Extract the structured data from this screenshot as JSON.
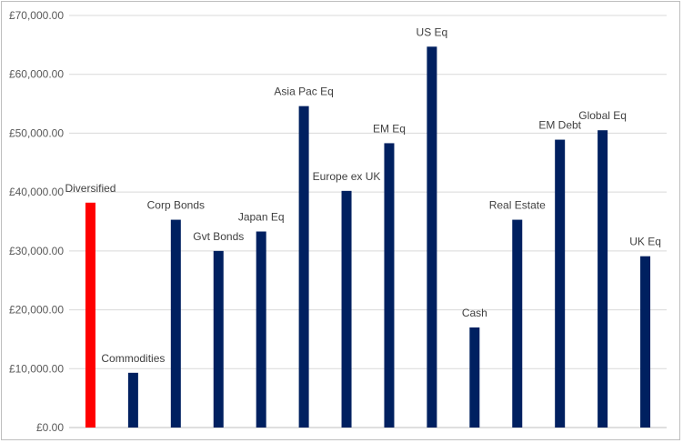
{
  "chart_data": {
    "type": "bar",
    "title": "",
    "xlabel": "",
    "ylabel": "",
    "ylim": [
      0,
      70000
    ],
    "y_ticks": [
      "£0.00",
      "£10,000.00",
      "£20,000.00",
      "£30,000.00",
      "£40,000.00",
      "£50,000.00",
      "£60,000.00",
      "£70,000.00"
    ],
    "grid": true,
    "legend": "none",
    "categories": [
      "Diversified",
      "Commodities",
      "Corp Bonds",
      "Gvt Bonds",
      "Japan Eq",
      "Asia Pac Eq",
      "Europe ex UK",
      "EM Eq",
      "US Eq",
      "Cash",
      "Real Estate",
      "EM Debt",
      "Global Eq",
      "UK Eq"
    ],
    "values": [
      38200,
      9300,
      35300,
      30000,
      33300,
      54600,
      40200,
      48300,
      64700,
      17000,
      35300,
      48900,
      50500,
      29100
    ],
    "colors": {
      "highlight": "#ff0000",
      "bar": "#002060",
      "grid": "#d9d9d9",
      "axis": "#bfbfbf"
    },
    "highlight_index": 0
  }
}
